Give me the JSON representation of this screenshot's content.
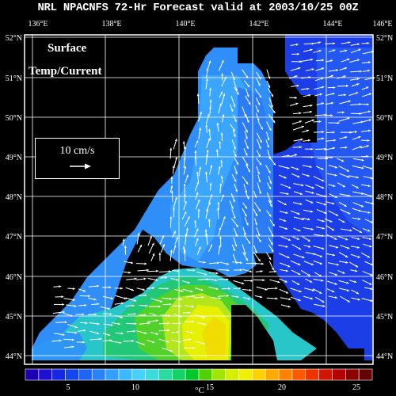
{
  "title": "NRL NPACNFS 72-Hr Forecast valid at 2003/10/25 00Z",
  "overlay": {
    "line1": "Surface",
    "line2": "Temp/Current"
  },
  "scale": {
    "label": "10 cm/s"
  },
  "lon_labels": [
    "136°E",
    "138°E",
    "140°E",
    "142°E",
    "144°E",
    "146°E"
  ],
  "lat_labels": [
    "52°N",
    "51°N",
    "50°N",
    "49°N",
    "48°N",
    "47°N",
    "46°N",
    "45°N",
    "44°N"
  ],
  "colorbar": {
    "ticks": [
      "5",
      "10",
      "15",
      "20",
      "25"
    ],
    "unit": "°C",
    "colors": [
      "#1a00b4",
      "#1e10d2",
      "#1428e6",
      "#1446f0",
      "#1e64f5",
      "#2882fa",
      "#32a0ff",
      "#3cbaff",
      "#46d2ff",
      "#3cdcdc",
      "#28dca0",
      "#14d264",
      "#00c828",
      "#50d200",
      "#a0e600",
      "#d2f000",
      "#f0f000",
      "#ffd200",
      "#ffaa00",
      "#ff8200",
      "#ff5a00",
      "#f03200",
      "#d21400",
      "#b40000",
      "#8c0000",
      "#640000"
    ]
  },
  "colors": {
    "land": "#000000",
    "grid": "#ffffff",
    "vectors": "#ffffff"
  }
}
